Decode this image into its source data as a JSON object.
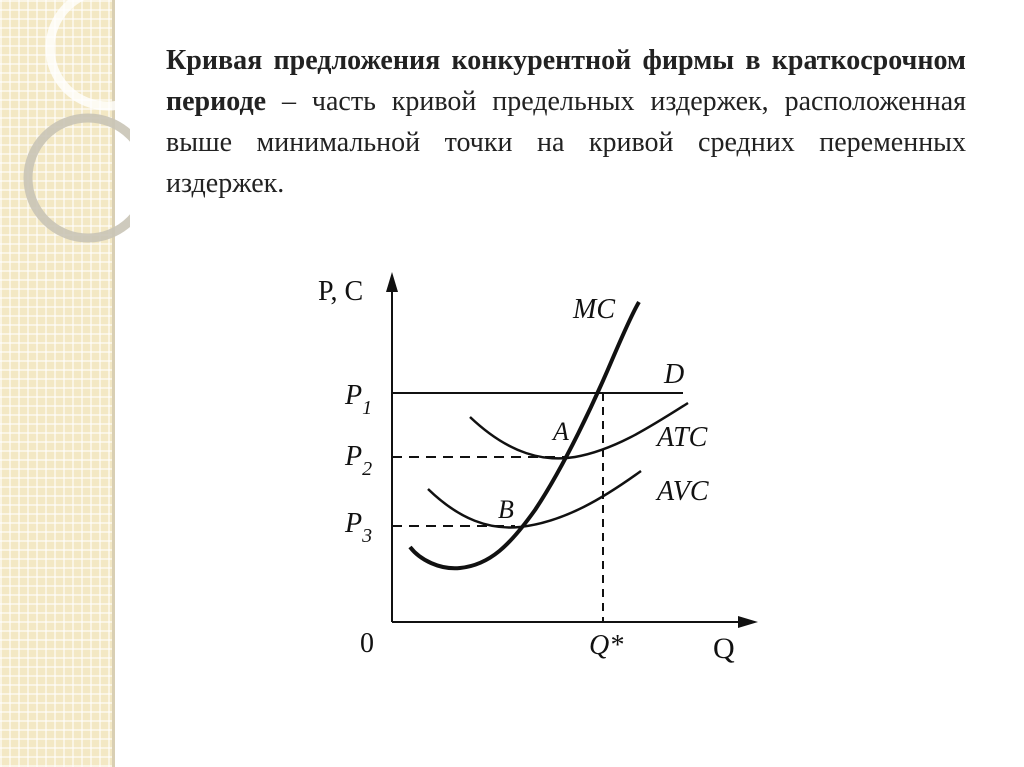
{
  "definition": {
    "term": "Кривая предложения конкурентной фирмы в краткосрочном периоде",
    "dash": " – ",
    "body": "часть кривой предельных издержек, расположенная выше минимальной точки на кривой средних переменных издержек."
  },
  "diagram": {
    "y_axis_label": "P, C",
    "x_axis_label": "Q",
    "origin_label": "0",
    "price_labels": [
      {
        "main": "P",
        "sub": "1"
      },
      {
        "main": "P",
        "sub": "2"
      },
      {
        "main": "P",
        "sub": "3"
      }
    ],
    "curve_labels": {
      "mc": "MC",
      "d": "D",
      "atc": "ATC",
      "avc": "AVC"
    },
    "point_labels": {
      "a": "A",
      "b": "B"
    },
    "q_label": "Q*",
    "colors": {
      "lines": "#111111",
      "strip": "#f3e8c4"
    }
  }
}
